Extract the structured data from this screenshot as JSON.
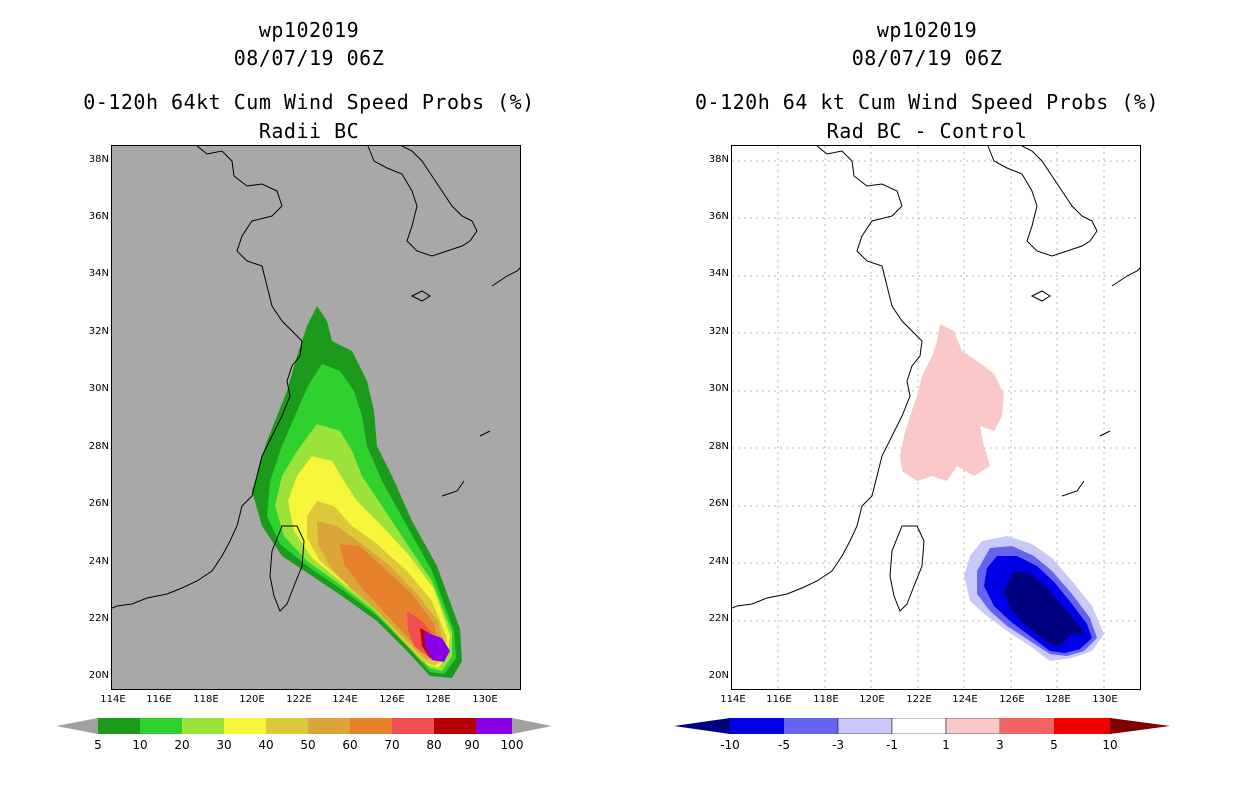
{
  "left_panel": {
    "storm_id": "wp102019",
    "datetime": "08/07/19 06Z",
    "title": "0-120h 64kt Cum Wind Speed Probs (%)",
    "subtitle": "Radii BC",
    "lat_labels": [
      "38N",
      "36N",
      "34N",
      "32N",
      "30N",
      "28N",
      "26N",
      "24N",
      "22N",
      "20N"
    ],
    "lon_labels": [
      "114E",
      "116E",
      "118E",
      "120E",
      "122E",
      "124E",
      "126E",
      "128E",
      "130E"
    ],
    "colorbar": {
      "labels": [
        "5",
        "10",
        "20",
        "30",
        "40",
        "50",
        "60",
        "70",
        "80",
        "90",
        "100"
      ],
      "colors": [
        "#1c9a1c",
        "#2fd12f",
        "#9be33a",
        "#f5f53a",
        "#dcc83a",
        "#dca53a",
        "#e6822d",
        "#f05050",
        "#b40000",
        "#8a00e6"
      ],
      "end_color": "#a0a0a0"
    }
  },
  "right_panel": {
    "storm_id": "wp102019",
    "datetime": "08/07/19 06Z",
    "title": "0-120h 64 kt Cum Wind Speed Probs (%)",
    "subtitle": "Rad BC - Control",
    "lat_labels": [
      "38N",
      "36N",
      "34N",
      "32N",
      "30N",
      "28N",
      "26N",
      "24N",
      "22N",
      "20N"
    ],
    "lon_labels": [
      "114E",
      "116E",
      "118E",
      "120E",
      "122E",
      "124E",
      "126E",
      "128E",
      "130E"
    ],
    "colorbar": {
      "labels": [
        "-10",
        "-5",
        "-3",
        "-1",
        "1",
        "3",
        "5",
        "10"
      ],
      "colors": [
        "#0000e6",
        "#6464f0",
        "#c8c8fa",
        "#ffffff",
        "#fac8c8",
        "#f06464",
        "#f00000"
      ],
      "low_end_color": "#000080",
      "high_end_color": "#800000"
    }
  }
}
